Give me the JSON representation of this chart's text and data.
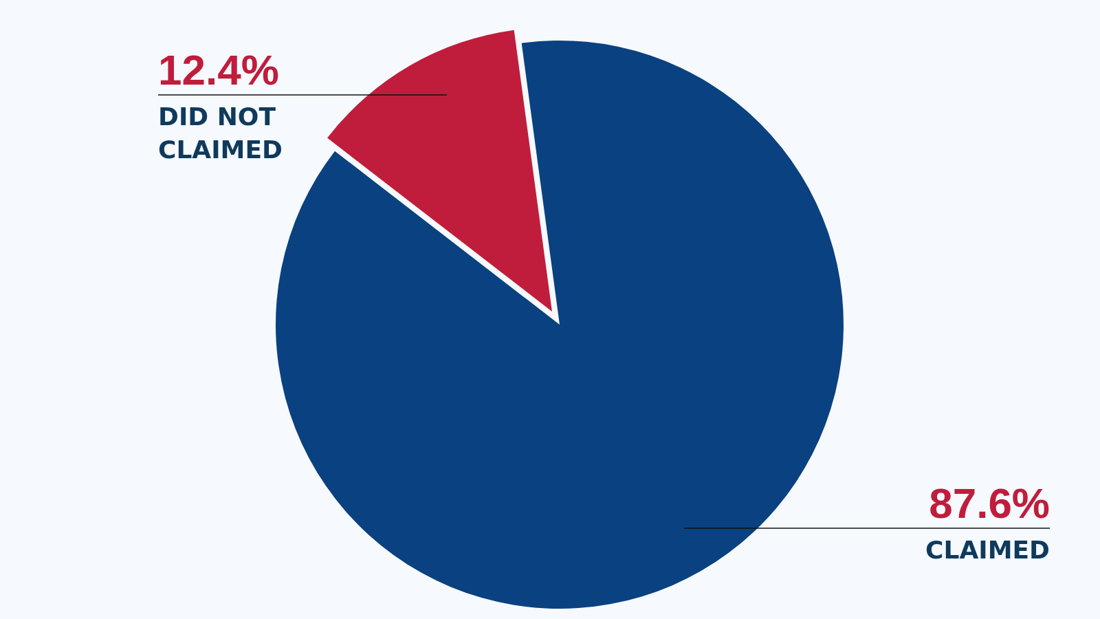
{
  "chart_data": {
    "type": "pie",
    "categories": [
      "CLAIMED",
      "DID NOT CLAIMED"
    ],
    "values": [
      87.6,
      12.4
    ],
    "value_labels": [
      "87.6%",
      "12.4%"
    ],
    "colors": [
      "#0a4180",
      "#c01d3c"
    ]
  }
}
